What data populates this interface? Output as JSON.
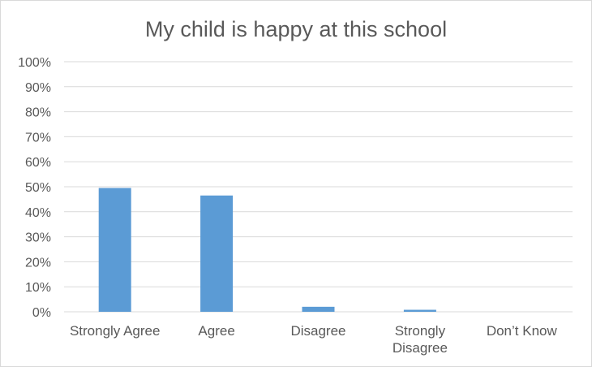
{
  "chart_data": {
    "type": "bar",
    "title": "My child is happy at this school",
    "categories": [
      "Strongly Agree",
      "Agree",
      "Disagree",
      "Strongly Disagree",
      "Don’t Know"
    ],
    "category_lines": [
      [
        "Strongly Agree"
      ],
      [
        "Agree"
      ],
      [
        "Disagree"
      ],
      [
        "Strongly",
        "Disagree"
      ],
      [
        "Don’t Know"
      ]
    ],
    "values": [
      49.5,
      46.5,
      2,
      0.8,
      0
    ],
    "ylim": [
      0,
      100
    ],
    "y_ticks": [
      0,
      10,
      20,
      30,
      40,
      50,
      60,
      70,
      80,
      90,
      100
    ],
    "y_tick_labels": [
      "0%",
      "10%",
      "20%",
      "30%",
      "40%",
      "50%",
      "60%",
      "70%",
      "80%",
      "90%",
      "100%"
    ],
    "xlabel": "",
    "ylabel": "",
    "grid": true,
    "legend": "none",
    "colors": {
      "bar": "#5b9bd5",
      "grid": "#d9d9d9",
      "text": "#595959"
    }
  }
}
